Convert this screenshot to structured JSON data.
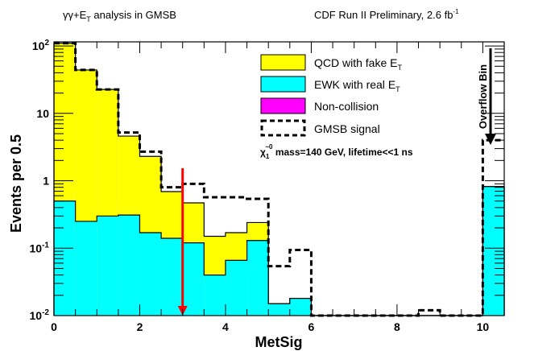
{
  "header": {
    "left_title_prefix": "γγ+",
    "left_title_met": "E",
    "left_title_sub": "T",
    "left_title_rest": " analysis in GMSB",
    "right_title": "CDF Run II Preliminary, 2.6 fb",
    "right_title_sup": "-1"
  },
  "chart_data": {
    "type": "histogram",
    "title": "γγ+MET analysis in GMSB",
    "xlabel": "MetSig",
    "ylabel": "Events per 0.5",
    "xlim": [
      0,
      10.5
    ],
    "ylim": [
      0.01,
      115
    ],
    "yscale": "log",
    "xticks": [
      "0",
      "2",
      "4",
      "6",
      "8",
      "10"
    ],
    "xtick_values": [
      0,
      2,
      4,
      6,
      8,
      10
    ],
    "yticks": [
      "10^-2",
      "10^-1",
      "1",
      "10",
      "10^2"
    ],
    "ytick_values": [
      0.01,
      0.1,
      1,
      10,
      100
    ],
    "bin_edges": [
      0,
      0.5,
      1,
      1.5,
      2,
      2.5,
      3,
      3.5,
      4,
      4.5,
      5,
      5.5,
      6,
      6.5,
      7,
      7.5,
      8,
      8.5,
      9,
      9.5,
      10,
      10.5
    ],
    "series": [
      {
        "name": "QCD with fake MET",
        "label": "QCD with fake ",
        "color": "#ffff00",
        "style": "filled-stacked-total",
        "values": [
          110,
          44,
          22.6,
          4.6,
          2.3,
          0.69,
          0.47,
          0.15,
          0.17,
          0.24,
          0.015,
          0.018,
          0,
          0,
          0,
          0,
          0,
          0,
          0,
          0,
          0.82
        ]
      },
      {
        "name": "EWK with real MET",
        "label": "EWK with real ",
        "color": "#00ffff",
        "style": "filled",
        "values": [
          0.5,
          0.25,
          0.3,
          0.31,
          0.17,
          0.14,
          0.12,
          0.04,
          0.066,
          0.13,
          0.015,
          0.018,
          0,
          0,
          0,
          0,
          0,
          0,
          0,
          0,
          0.82
        ]
      },
      {
        "name": "Non-collision",
        "label": "Non-collision",
        "color": "#ff00ff",
        "style": "filled",
        "values": [
          0,
          0,
          0,
          0,
          0,
          0,
          0,
          0,
          0,
          0,
          0,
          0,
          0,
          0,
          0,
          0,
          0,
          0,
          0,
          0,
          0
        ]
      },
      {
        "name": "GMSB signal",
        "label": "GMSB signal",
        "color": "#000000",
        "style": "dashed",
        "values": [
          110,
          44,
          22.6,
          5.2,
          2.7,
          0.8,
          0.9,
          0.57,
          0.57,
          0.54,
          0.054,
          0.094,
          0.01,
          0.01,
          0.01,
          0.01,
          0.01,
          0.012,
          0.01,
          0.01,
          4.0
        ]
      }
    ],
    "legend": {
      "position": "top-right",
      "met_symbol": "E",
      "met_sub": "T",
      "note_prefix": "χ",
      "note_sup": "~0",
      "note_sub": "1",
      "note_text": " mass=140 GeV, lifetime<<1 ns"
    },
    "annotations": [
      {
        "text": "Overflow Bin",
        "type": "arrow-down",
        "x": 10.3
      },
      {
        "text": "",
        "type": "cut-arrow",
        "x": 3,
        "color": "#ff0000"
      }
    ]
  }
}
